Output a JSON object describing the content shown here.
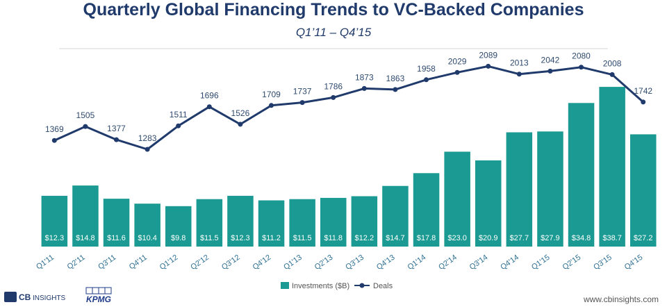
{
  "header": {
    "title": "Quarterly Global Financing Trends to VC-Backed Companies",
    "subtitle": "Q1’11 – Q4’15"
  },
  "chart_data": {
    "type": "bar+line",
    "categories": [
      "Q1'11",
      "Q2'11",
      "Q3'11",
      "Q4'11",
      "Q1'12",
      "Q2'12",
      "Q3'12",
      "Q4'12",
      "Q1'13",
      "Q2'13",
      "Q3'13",
      "Q4'13",
      "Q1'14",
      "Q2'14",
      "Q3'14",
      "Q4'14",
      "Q1'15",
      "Q2'15",
      "Q3'15",
      "Q4'15"
    ],
    "series": [
      {
        "name": "Investments ($B)",
        "type": "bar",
        "color": "#1a9a92",
        "values": [
          12.3,
          14.8,
          11.6,
          10.4,
          9.8,
          11.5,
          12.3,
          11.2,
          11.5,
          11.8,
          12.2,
          14.7,
          17.8,
          23.0,
          20.9,
          27.7,
          27.9,
          34.8,
          38.7,
          27.2
        ],
        "labels": [
          "$12.3",
          "$14.8",
          "$11.6",
          "$10.4",
          "$9.8",
          "$11.5",
          "$12.3",
          "$11.2",
          "$11.5",
          "$11.8",
          "$12.2",
          "$14.7",
          "$17.8",
          "$23.0",
          "$20.9",
          "$27.7",
          "$27.9",
          "$34.8",
          "$38.7",
          "$27.2"
        ]
      },
      {
        "name": "Deals",
        "type": "line",
        "color": "#1f3a6b",
        "values": [
          1369,
          1505,
          1377,
          1283,
          1511,
          1696,
          1526,
          1709,
          1737,
          1786,
          1873,
          1863,
          1958,
          2029,
          2089,
          2013,
          2042,
          2080,
          2008,
          1742
        ]
      }
    ],
    "legend_placement": "bottom-center"
  },
  "footer": {
    "logo_cb_bold": "CB",
    "logo_cb_light": "INSIGHTS",
    "logo_kpmg": "KPMG",
    "url": "www.cbinsights.com"
  },
  "colors": {
    "title": "#1f3a6b",
    "bar": "#1a9a92",
    "line": "#1f3a6b",
    "category": "#2e6f92"
  }
}
